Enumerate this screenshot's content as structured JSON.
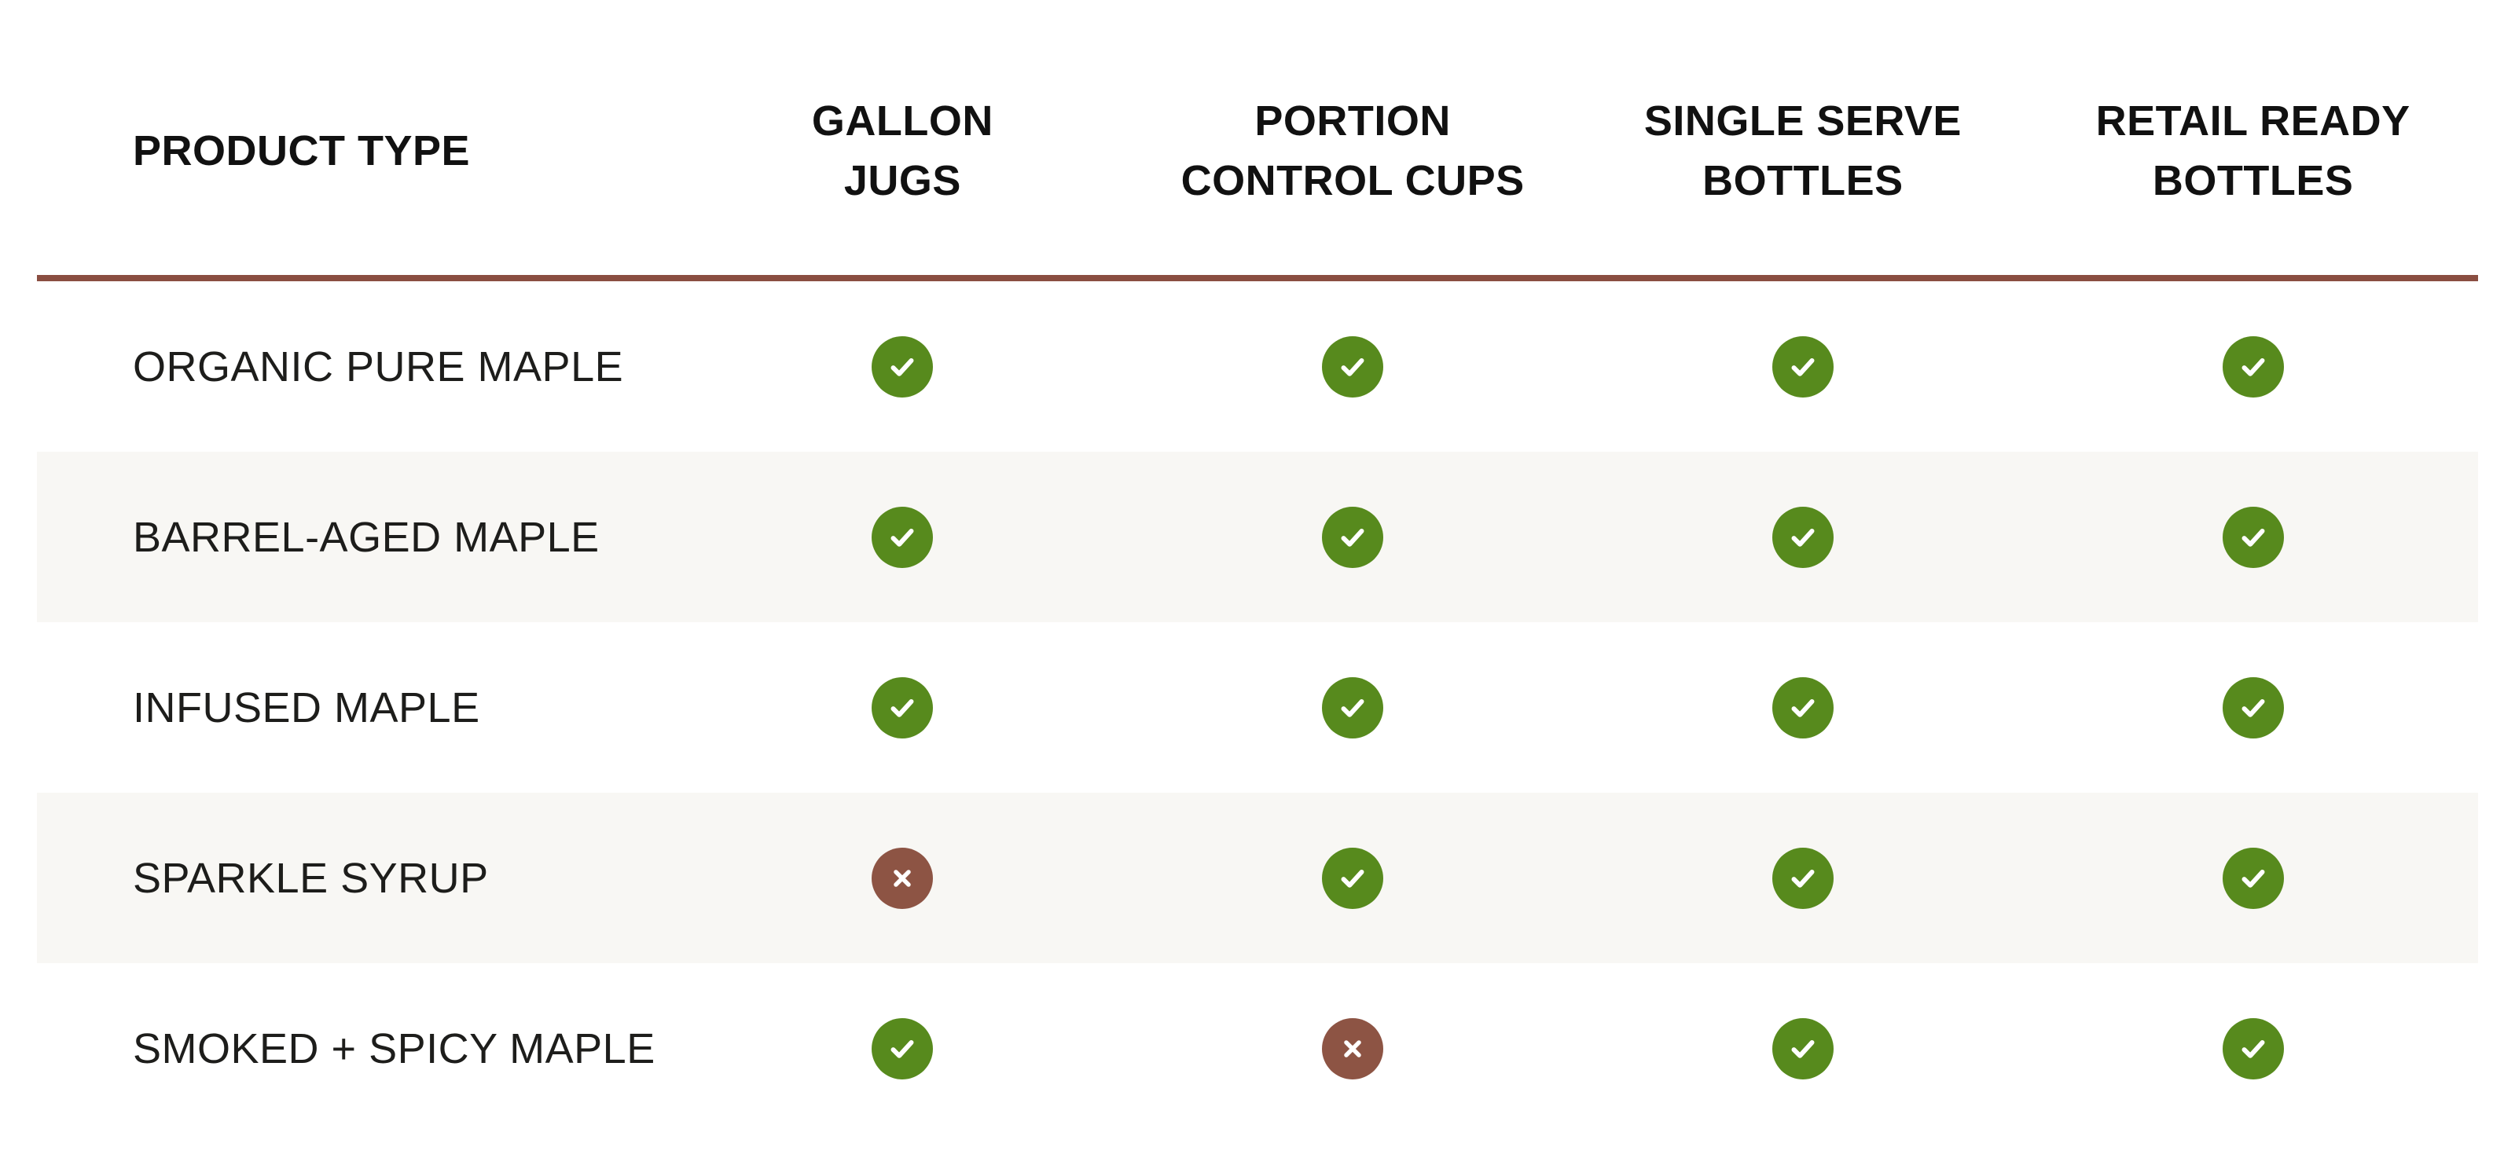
{
  "table": {
    "header": {
      "product_type_label": "PRODUCT TYPE",
      "columns": [
        {
          "id": "gallon-jugs",
          "label_lines": [
            "GALLON",
            "JUGS"
          ]
        },
        {
          "id": "portion-control-cups",
          "label_lines": [
            "PORTION",
            "CONTROL CUPS"
          ]
        },
        {
          "id": "single-serve-bottles",
          "label_lines": [
            "SINGLE SERVE",
            "BOTTLES"
          ]
        },
        {
          "id": "retail-ready-bottles",
          "label_lines": [
            "RETAIL READY",
            "BOTTLES"
          ]
        }
      ]
    },
    "rows": [
      {
        "product": "ORGANIC PURE MAPLE",
        "availability": [
          "yes",
          "yes",
          "yes",
          "yes"
        ]
      },
      {
        "product": "BARREL-AGED MAPLE",
        "availability": [
          "yes",
          "yes",
          "yes",
          "yes"
        ]
      },
      {
        "product": "INFUSED MAPLE",
        "availability": [
          "yes",
          "yes",
          "yes",
          "yes"
        ]
      },
      {
        "product": "SPARKLE SYRUP",
        "availability": [
          "no",
          "yes",
          "yes",
          "yes"
        ]
      },
      {
        "product": "SMOKED + SPICY MAPLE",
        "availability": [
          "yes",
          "no",
          "yes",
          "yes"
        ]
      }
    ]
  },
  "icons": {
    "yes": "check-icon",
    "no": "x-icon"
  },
  "colors": {
    "check_green": "#578A1D",
    "cross_red": "#8D5444",
    "divider_brown": "#8A4E41",
    "stripe_bg": "#F8F7F4",
    "text_color": "#1D1D1B",
    "header_color": "#111111"
  },
  "chart_data": {
    "type": "table",
    "columns": [
      "PRODUCT TYPE",
      "GALLON JUGS",
      "PORTION CONTROL CUPS",
      "SINGLE SERVE BOTTLES",
      "RETAIL READY BOTTLES"
    ],
    "rows": [
      [
        "ORGANIC PURE MAPLE",
        true,
        true,
        true,
        true
      ],
      [
        "BARREL-AGED MAPLE",
        true,
        true,
        true,
        true
      ],
      [
        "INFUSED MAPLE",
        true,
        true,
        true,
        true
      ],
      [
        "SPARKLE SYRUP",
        false,
        true,
        true,
        true
      ],
      [
        "SMOKED + SPICY MAPLE",
        true,
        false,
        true,
        true
      ]
    ],
    "cell_symbols": {
      "true": "green check circle",
      "false": "brown x circle"
    },
    "layout": "availability matrix, alternating row stripes, brown rule under header"
  }
}
